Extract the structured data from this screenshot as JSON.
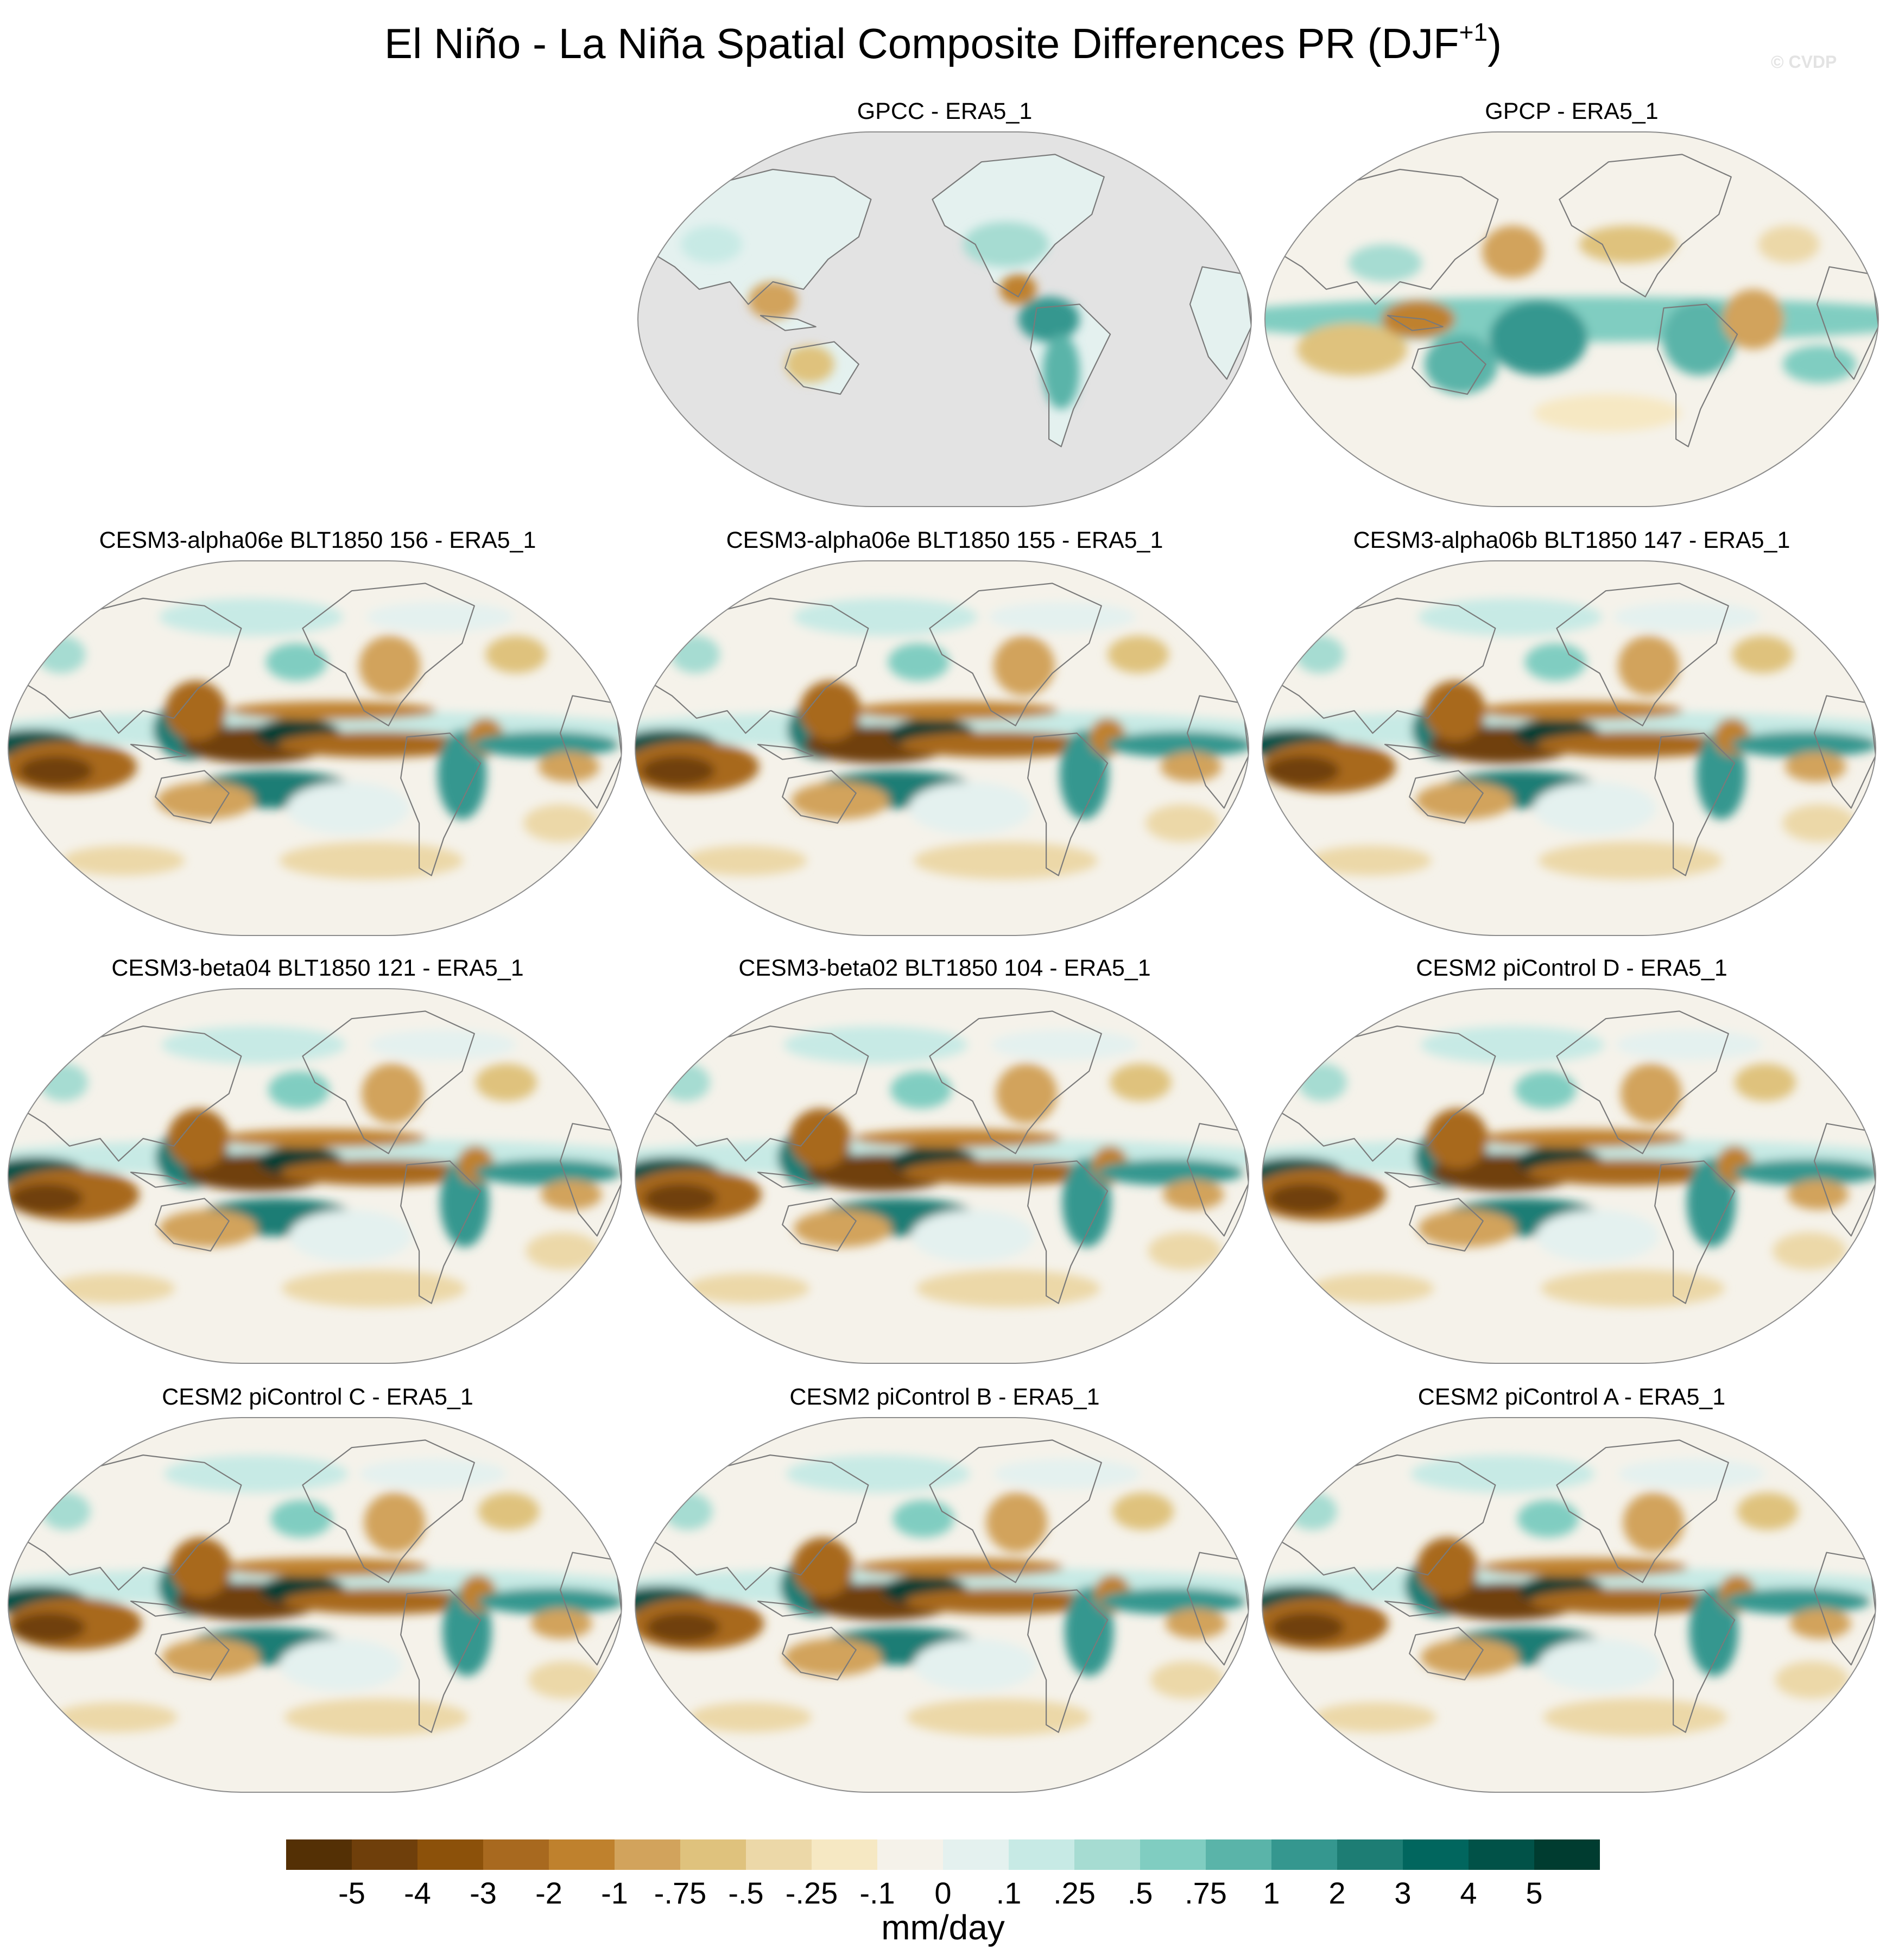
{
  "title": {
    "main": "El Niño - La Niña Spatial Composite Differences PR (DJF",
    "superscript": "+1",
    "close": ")"
  },
  "credit": "© CVDP",
  "panels": [
    {
      "title": "GPCC - ERA5_1",
      "style": "land-only"
    },
    {
      "title": "GPCP - ERA5_1",
      "style": "obs"
    },
    {
      "title": "CESM3-alpha06e BLT1850 156 - ERA5_1",
      "style": "model"
    },
    {
      "title": "CESM3-alpha06e BLT1850 155 - ERA5_1",
      "style": "model"
    },
    {
      "title": "CESM3-alpha06b BLT1850 147 - ERA5_1",
      "style": "model"
    },
    {
      "title": "CESM3-beta04 BLT1850 121 - ERA5_1",
      "style": "model"
    },
    {
      "title": "CESM3-beta02 BLT1850 104 - ERA5_1",
      "style": "model"
    },
    {
      "title": "CESM2 piControl D - ERA5_1",
      "style": "model"
    },
    {
      "title": "CESM2 piControl C - ERA5_1",
      "style": "model"
    },
    {
      "title": "CESM2 piControl B - ERA5_1",
      "style": "model"
    },
    {
      "title": "CESM2 piControl A - ERA5_1",
      "style": "model"
    }
  ],
  "colorbar": {
    "labels": [
      "-5",
      "-4",
      "-3",
      "-2",
      "-1",
      "-.75",
      "-.5",
      "-.25",
      "-.1",
      "0",
      ".1",
      ".25",
      ".5",
      ".75",
      "1",
      "2",
      "3",
      "4",
      "5"
    ],
    "colors": [
      "#543005",
      "#6f3f0b",
      "#8c510a",
      "#a8691f",
      "#bf812d",
      "#d2a35c",
      "#dfc27d",
      "#ecd8a8",
      "#f6e8c3",
      "#f5f2ea",
      "#e4f1ef",
      "#c7eae5",
      "#a6dcd2",
      "#80cdc1",
      "#5ab4a9",
      "#35978f",
      "#1d7d74",
      "#01665e",
      "#015248",
      "#003c30"
    ],
    "unit": "mm/day"
  },
  "chart_data": {
    "type": "heatmap",
    "title": "El Niño - La Niña Spatial Composite Differences PR (DJF+1)",
    "units": "mm/day",
    "contour_levels": [
      -5,
      -4,
      -3,
      -2,
      -1,
      -0.75,
      -0.5,
      -0.25,
      -0.1,
      0,
      0.1,
      0.25,
      0.5,
      0.75,
      1,
      2,
      3,
      4,
      5
    ],
    "panels": [
      "GPCC - ERA5_1",
      "GPCP - ERA5_1",
      "CESM3-alpha06e BLT1850 156 - ERA5_1",
      "CESM3-alpha06e BLT1850 155 - ERA5_1",
      "CESM3-alpha06b BLT1850 147 - ERA5_1",
      "CESM3-beta04 BLT1850 121 - ERA5_1",
      "CESM3-beta02 BLT1850 104 - ERA5_1",
      "CESM2 piControl D - ERA5_1",
      "CESM2 piControl C - ERA5_1",
      "CESM2 piControl B - ERA5_1",
      "CESM2 piControl A - ERA5_1"
    ],
    "projection": "Robinson-like, Pacific centered",
    "legend_position": "bottom"
  }
}
